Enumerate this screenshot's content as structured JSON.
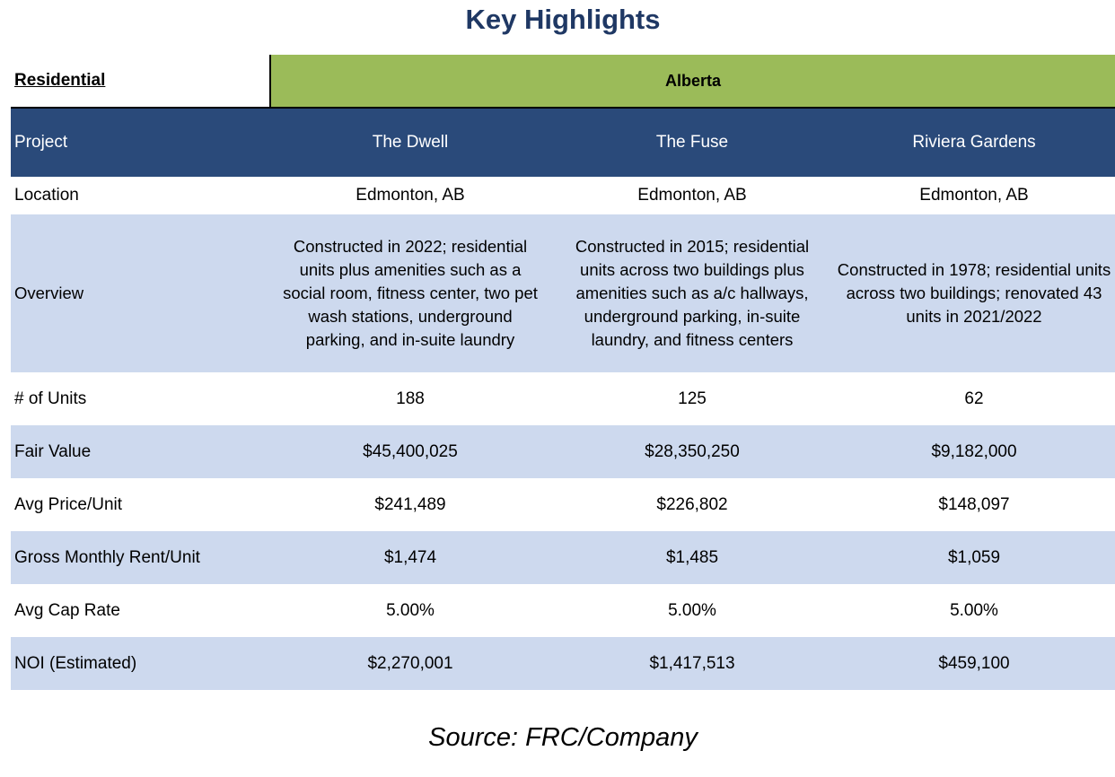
{
  "title": "Key Highlights",
  "section": {
    "label": "Residential",
    "region": "Alberta",
    "region_color": "#9bbb59"
  },
  "header": {
    "label": "Project",
    "projects": [
      "The Dwell",
      "The Fuse",
      "Riviera Gardens"
    ],
    "background": "#2a4a7a"
  },
  "rows": [
    {
      "label": "Location",
      "values": [
        "Edmonton, AB",
        "Edmonton, AB",
        "Edmonton, AB"
      ]
    },
    {
      "label": "Overview",
      "values": [
        "Constructed in 2022; residential units plus amenities such as a social room, fitness center, two pet wash stations, underground parking, and in-suite laundry",
        "Constructed in 2015; residential units across two buildings plus amenities such as a/c hallways, underground parking, in-suite laundry, and fitness centers",
        "Constructed in 1978; residential units across two buildings; renovated 43 units in 2021/2022"
      ]
    },
    {
      "label": "# of Units",
      "values": [
        "188",
        "125",
        "62"
      ]
    },
    {
      "label": "Fair Value",
      "values": [
        "$45,400,025",
        "$28,350,250",
        "$9,182,000"
      ]
    },
    {
      "label": "Avg Price/Unit",
      "values": [
        "$241,489",
        "$226,802",
        "$148,097"
      ]
    },
    {
      "label": "Gross Monthly Rent/Unit",
      "values": [
        "$1,474",
        "$1,485",
        "$1,059"
      ]
    },
    {
      "label": "Avg Cap Rate",
      "values": [
        "5.00%",
        "5.00%",
        "5.00%"
      ]
    },
    {
      "label": "NOI (Estimated)",
      "values": [
        "$2,270,001",
        "$1,417,513",
        "$459,100"
      ]
    }
  ],
  "source": "Source: FRC/Company",
  "colors": {
    "title": "#1f3864",
    "band_light": "#cdd9ee"
  }
}
